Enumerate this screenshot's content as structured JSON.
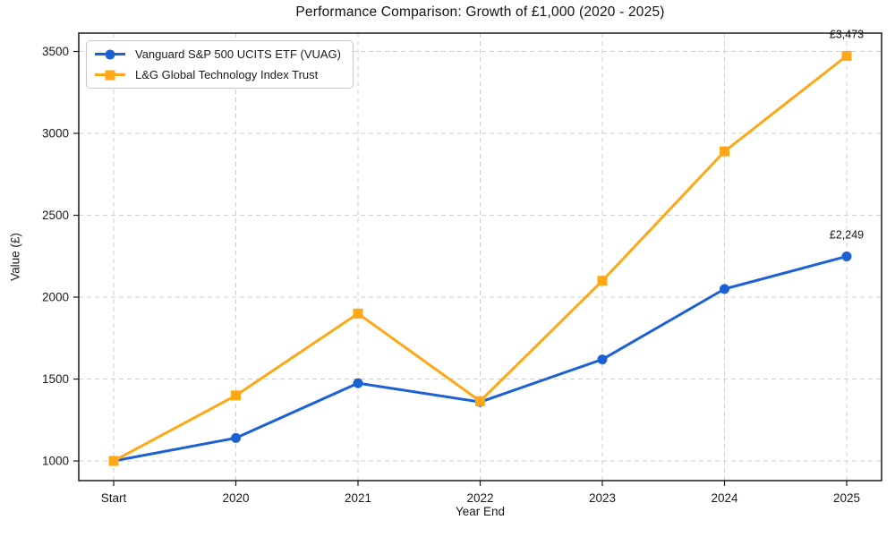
{
  "chart_data": {
    "type": "line",
    "title": "Performance Comparison: Growth of £1,000 (2020 - 2025)",
    "xlabel": "Year End",
    "ylabel": "Value (£)",
    "categories": [
      "Start",
      "2020",
      "2021",
      "2022",
      "2023",
      "2024",
      "2025"
    ],
    "series": [
      {
        "name": "Vanguard S&P 500 UCITS ETF (VUAG)",
        "color": "#1c61d4",
        "marker": "circle",
        "values": [
          1000,
          1140,
          1475,
          1360,
          1620,
          2050,
          2249
        ],
        "end_label": "£2,249"
      },
      {
        "name": "L&G Global Technology Index Trust",
        "color": "#ffa716",
        "marker": "square",
        "values": [
          1000,
          1400,
          1900,
          1365,
          2100,
          2890,
          3473
        ],
        "end_label": "£3,473"
      }
    ],
    "yticks": [
      1000,
      1500,
      2000,
      2500,
      3000,
      3500
    ],
    "ylim": [
      880,
      3612
    ],
    "grid": true,
    "grid_color": "#cfcfcf",
    "frame_color": "#1a1a1a",
    "legend_position": "upper left",
    "annotation_color": "#111111"
  }
}
